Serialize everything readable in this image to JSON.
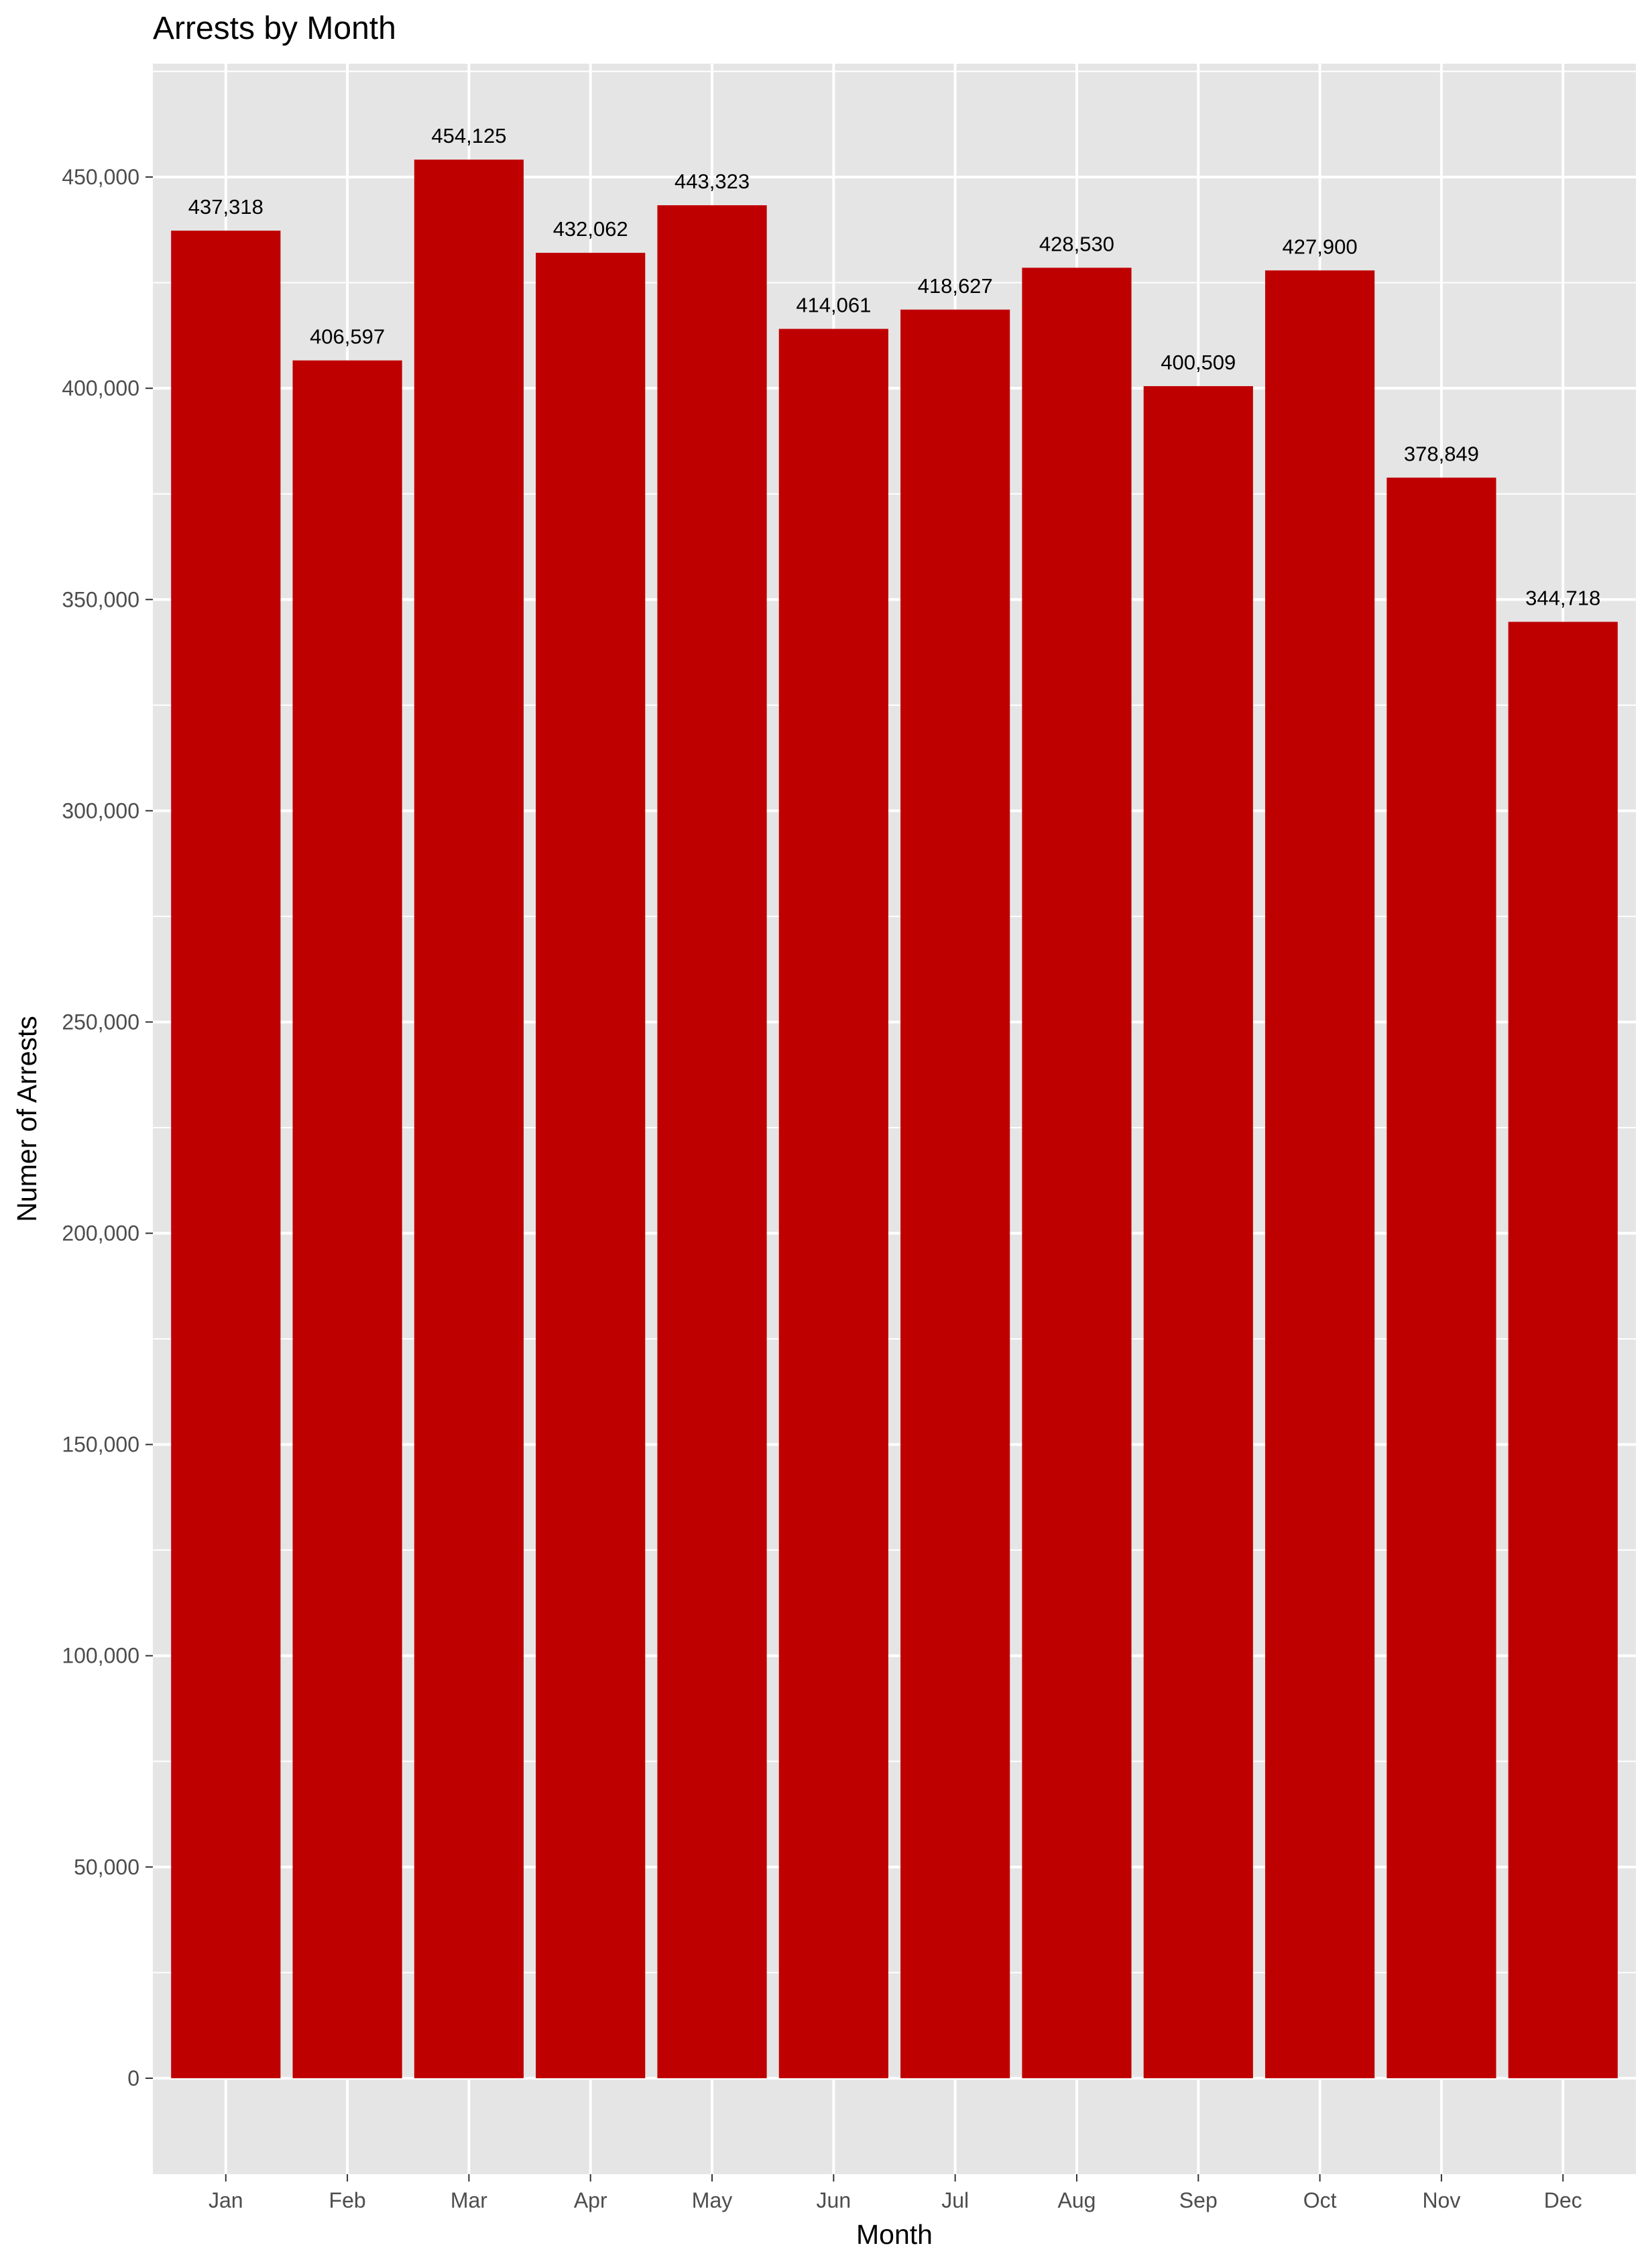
{
  "chart_data": {
    "type": "bar",
    "title": "Arrests by Month",
    "xlabel": "Month",
    "ylabel": "Numer of Arrests",
    "categories": [
      "Jan",
      "Feb",
      "Mar",
      "Apr",
      "May",
      "Jun",
      "Jul",
      "Aug",
      "Sep",
      "Oct",
      "Nov",
      "Dec"
    ],
    "values": [
      437318,
      406597,
      454125,
      432062,
      443323,
      414061,
      418627,
      428530,
      400509,
      427900,
      378849,
      344718
    ],
    "data_labels": [
      "437,318",
      "406,597",
      "454,125",
      "432,062",
      "443,323",
      "414,061",
      "418,627",
      "428,530",
      "400,509",
      "427,900",
      "378,849",
      "344,718"
    ],
    "y_ticks": [
      0,
      50000,
      100000,
      150000,
      200000,
      250000,
      300000,
      350000,
      400000,
      450000
    ],
    "y_tick_labels": [
      "0",
      "50,000",
      "100,000",
      "150,000",
      "200,000",
      "250,000",
      "300,000",
      "350,000",
      "400,000",
      "450,000"
    ],
    "ylim": [
      -22706,
      476831
    ],
    "grid": true,
    "colors": {
      "bar": "#bf0000",
      "panel": "#e5e5e5",
      "grid": "#ffffff",
      "tick_text": "#4d4d4d",
      "tick_mark": "#333333"
    }
  }
}
